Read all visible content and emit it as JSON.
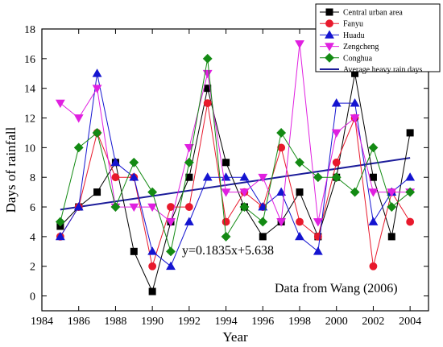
{
  "chart_data": {
    "type": "line",
    "xlabel": "Year",
    "ylabel": "Days of rainfall",
    "xlim": [
      1984,
      2005
    ],
    "ylim": [
      -1,
      18
    ],
    "xticks": [
      1984,
      1986,
      1988,
      1990,
      1992,
      1994,
      1996,
      1998,
      2000,
      2002,
      2004
    ],
    "yticks": [
      0,
      2,
      4,
      6,
      8,
      10,
      12,
      14,
      16,
      18
    ],
    "x": [
      1985,
      1986,
      1987,
      1988,
      1989,
      1990,
      1991,
      1992,
      1993,
      1994,
      1995,
      1996,
      1997,
      1998,
      1999,
      2000,
      2001,
      2002,
      2003,
      2004
    ],
    "series": [
      {
        "name": "Central urban area",
        "color": "#000000",
        "marker": "square",
        "values": [
          4.7,
          6,
          7,
          9,
          3,
          0.3,
          5,
          8,
          14,
          9,
          6,
          4,
          5,
          7,
          4,
          8,
          15,
          8,
          4,
          11
        ]
      },
      {
        "name": "Fanyu",
        "color": "#e8192c",
        "marker": "circle",
        "values": [
          4,
          6,
          11,
          8,
          8,
          2,
          6,
          6,
          13,
          5,
          7,
          6,
          10,
          5,
          4,
          9,
          12,
          2,
          7,
          5
        ]
      },
      {
        "name": "Huadu",
        "color": "#1414d0",
        "marker": "triangle-up",
        "values": [
          4,
          6,
          15,
          9,
          8,
          3,
          2,
          5,
          8,
          8,
          8,
          6,
          7,
          4,
          3,
          13,
          13,
          5,
          7,
          8
        ]
      },
      {
        "name": "Zengcheng",
        "color": "#e020e0",
        "marker": "triangle-down",
        "values": [
          13,
          12,
          14,
          6,
          6,
          6,
          5,
          10,
          15,
          7,
          7,
          8,
          5,
          17,
          5,
          11,
          12,
          7,
          7,
          7
        ]
      },
      {
        "name": "Conghua",
        "color": "#138a13",
        "marker": "diamond",
        "values": [
          5,
          10,
          11,
          6,
          9,
          7,
          3,
          9,
          16,
          4,
          6,
          5,
          11,
          9,
          8,
          8,
          7,
          10,
          6,
          7
        ]
      }
    ],
    "trend": {
      "name": "Average heavy rain days",
      "color": "#1c1c9a",
      "slope": 0.1835,
      "intercept": 5.638,
      "x_start": 1985,
      "x_end": 2004,
      "x_origin": 1984,
      "equation": "y=0.1835x+5.638"
    },
    "annotation": "Data from Wang (2006)",
    "grid": false,
    "legend_position": "top-right"
  }
}
